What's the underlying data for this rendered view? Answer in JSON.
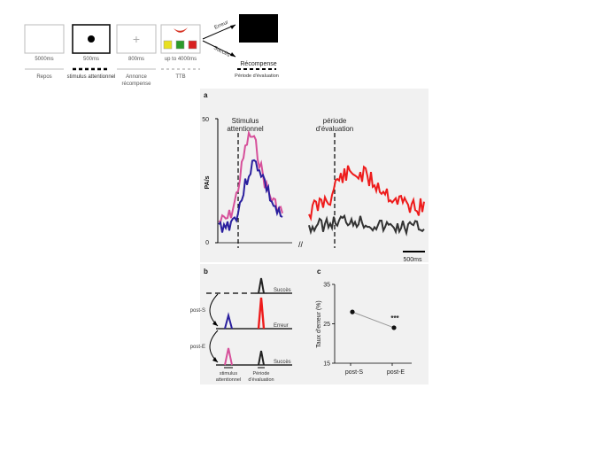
{
  "task": {
    "panels": [
      {
        "duration": "5000ms",
        "label": "Repos"
      },
      {
        "duration": "500ms",
        "label": "stimulus attentionnel"
      },
      {
        "duration": "800ms",
        "label": "Annonce",
        "label2": "récompense"
      },
      {
        "duration": "up to 4000ms",
        "label": "TTB"
      }
    ],
    "branch_error": "Erreur",
    "branch_success": "Succès",
    "reward": "Récompense",
    "eval_period": "Période d'évaluation"
  },
  "panel_a": {
    "letter": "a",
    "ylabel": "PA/s",
    "yticks": [
      "50",
      "0"
    ],
    "stim_label_1": "Stimulus",
    "stim_label_2": "attentionnel",
    "eval_label_1": "période",
    "eval_label_2": "d'évaluation",
    "break": "//",
    "scalebar": "500ms"
  },
  "panel_b": {
    "letter": "b",
    "post_s": "post-S",
    "post_e": "post-E",
    "succes_top": "Succès",
    "erreur": "Erreur",
    "succes_bottom": "Succès",
    "xlabel1_a": "stimulus",
    "xlabel1_b": "attentionnel",
    "xlabel2_a": "Période",
    "xlabel2_b": "d'évaluation"
  },
  "chart_data": {
    "type": "line",
    "title": "",
    "xlabel": "",
    "ylabel": "Taux d'erreur (%)",
    "categories": [
      "post-S",
      "post-E"
    ],
    "values": [
      28,
      24
    ],
    "ylim": [
      15,
      35
    ],
    "yticks": [
      "35",
      "25",
      "15"
    ],
    "annotation": "***",
    "letter": "c"
  }
}
